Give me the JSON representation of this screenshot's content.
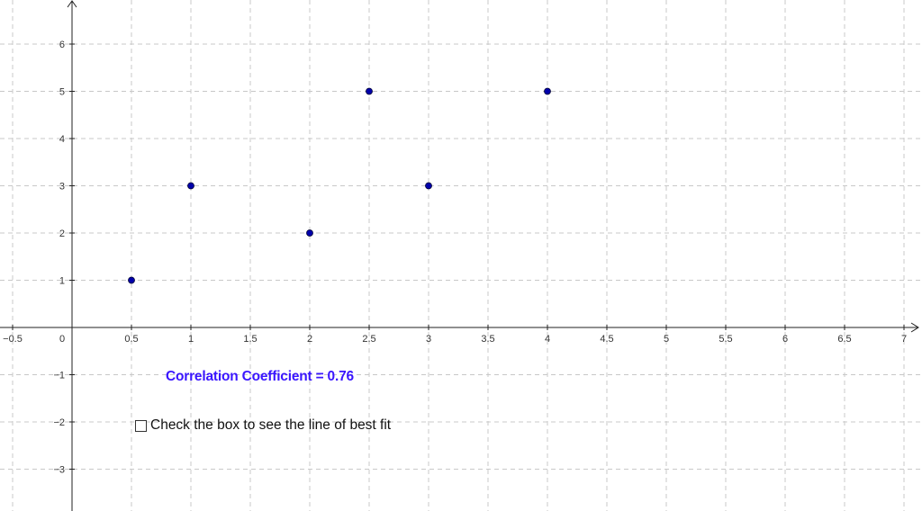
{
  "chart_data": {
    "type": "scatter",
    "points": [
      {
        "x": 0.5,
        "y": 1
      },
      {
        "x": 1,
        "y": 3
      },
      {
        "x": 2,
        "y": 2
      },
      {
        "x": 2.5,
        "y": 5
      },
      {
        "x": 3,
        "y": 3
      },
      {
        "x": 4,
        "y": 5
      }
    ],
    "x_ticks": [
      "−0.5",
      "0",
      "0.5",
      "1",
      "1.5",
      "2",
      "2.5",
      "3",
      "3.5",
      "4",
      "4.5",
      "5",
      "5.5",
      "6",
      "6.5",
      "7"
    ],
    "y_ticks": [
      "6",
      "5",
      "4",
      "3",
      "2",
      "1",
      "−1",
      "−2",
      "−3"
    ],
    "xlim": [
      -0.6,
      7.15
    ],
    "ylim": [
      -3.8,
      6.9
    ],
    "grid": true,
    "point_color": "#0000aa"
  },
  "annotation": {
    "correlation_label": "Correlation Coefficient = 0.76",
    "color": "#3a16ff"
  },
  "controls": {
    "best_fit_checkbox_label": "Check the box to see the line of best fit",
    "best_fit_checked": false
  }
}
